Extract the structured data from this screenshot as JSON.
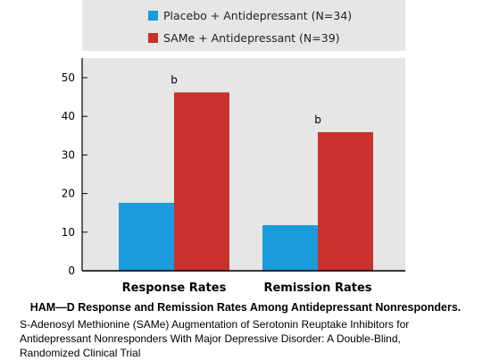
{
  "chart_data": {
    "type": "bar",
    "categories": [
      "Response Rates",
      "Remission Rates"
    ],
    "series": [
      {
        "name": "Placebo + Antidepressant (N=34)",
        "values": [
          17.6,
          11.8
        ],
        "color": "#1a9bdc"
      },
      {
        "name": "SAMe + Antidepressant (N=39)",
        "values": [
          46.2,
          35.9
        ],
        "color": "#c8312c"
      }
    ],
    "annotations": [
      {
        "category": "Response Rates",
        "series": "SAMe + Antidepressant (N=39)",
        "text": "b"
      },
      {
        "category": "Remission Rates",
        "series": "SAMe + Antidepressant (N=39)",
        "text": "b"
      }
    ],
    "y_ticks": [
      "0",
      "10",
      "20",
      "30",
      "40",
      "50"
    ],
    "ylim": [
      0,
      50
    ],
    "grid": false,
    "legend_position": "top",
    "colors": {
      "plot_background": "#e6e6e6",
      "legend_background": "#e6e6e6"
    }
  },
  "caption": {
    "title": "HAM—D Response and Remission Rates Among Antidepressant Nonresponders.",
    "source_lines": [
      "S-Adenosyl Methionine (SAMe) Augmentation of Serotonin Reuptake Inhibitors for",
      "Antidepressant Nonresponders With Major Depressive Disorder: A Double-Blind,",
      "Randomized Clinical Trial"
    ]
  }
}
